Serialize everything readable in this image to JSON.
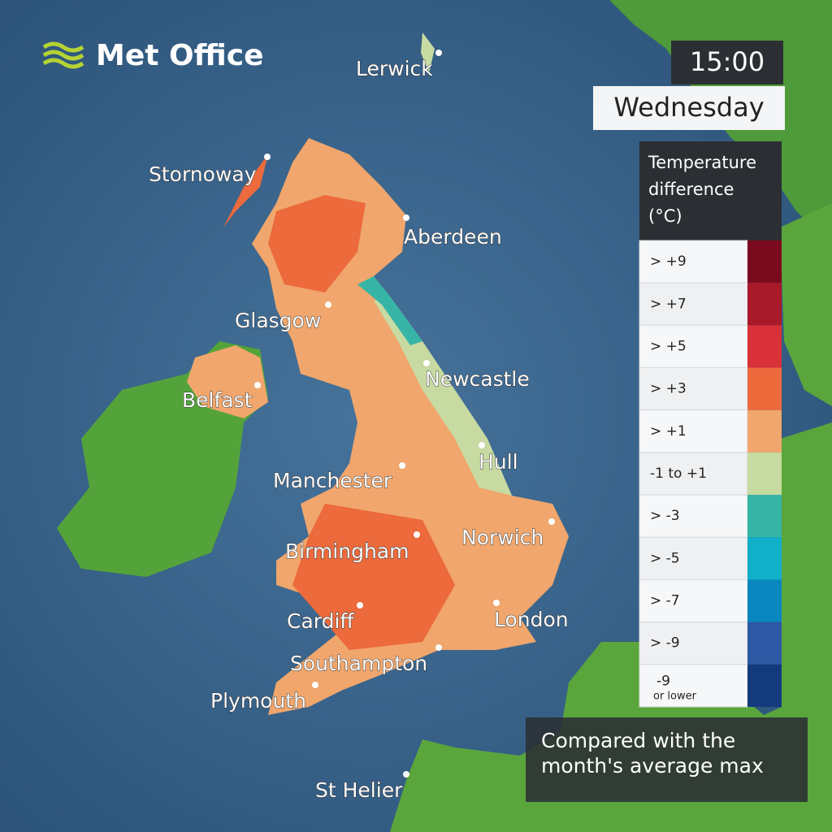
{
  "logo": "Met Office",
  "time": "15:00",
  "day": "Wednesday",
  "legend": {
    "title": [
      "Temperature",
      "difference",
      "(°C)"
    ],
    "entries": [
      {
        "label": "> +9",
        "color": "#7a0a1e"
      },
      {
        "label": "> +7",
        "color": "#a8192a"
      },
      {
        "label": "> +5",
        "color": "#d8313a"
      },
      {
        "label": "> +3",
        "color": "#ec6a3c"
      },
      {
        "label": "> +1",
        "color": "#f0a66c"
      },
      {
        "label": "-1 to +1",
        "color": "#c7daa2"
      },
      {
        "label": "> -3",
        "color": "#36b5a7"
      },
      {
        "label": "> -5",
        "color": "#12afc8"
      },
      {
        "label": "> -7",
        "color": "#0a87be"
      },
      {
        "label": "> -9",
        "color": "#2d58a3"
      },
      {
        "label": "-9",
        "note": "or lower",
        "color": "#133a7c"
      }
    ]
  },
  "cities": [
    "Lerwick",
    "Stornoway",
    "Aberdeen",
    "Glasgow",
    "Newcastle",
    "Belfast",
    "Hull",
    "Manchester",
    "Norwich",
    "Birmingham",
    "Cardiff",
    "London",
    "Southampton",
    "Plymouth",
    "St Helier"
  ],
  "footnote": [
    "Compared with the",
    "month's average max"
  ]
}
